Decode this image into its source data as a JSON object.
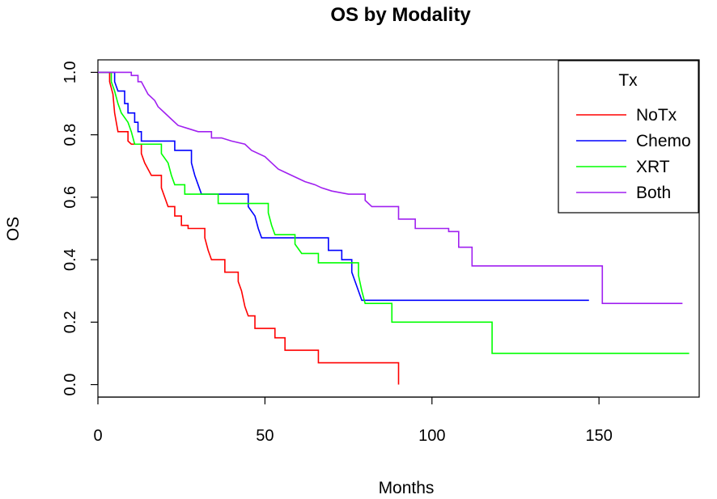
{
  "chart_data": {
    "type": "line",
    "subtype": "kaplan-meier step",
    "title": "OS by Modality",
    "xlabel": "Months",
    "ylabel": "OS",
    "xlim": [
      0,
      180
    ],
    "ylim": [
      -0.04,
      1.04
    ],
    "xticks": [
      0,
      50,
      100,
      150
    ],
    "yticks": [
      0.0,
      0.2,
      0.4,
      0.6,
      0.8,
      1.0
    ],
    "xtick_labels": [
      "0",
      "50",
      "100",
      "150"
    ],
    "ytick_labels": [
      "0.0",
      "0.2",
      "0.4",
      "0.6",
      "0.8",
      "1.0"
    ],
    "legend": {
      "title": "Tx",
      "position": "top-right"
    },
    "series": [
      {
        "name": "NoTx",
        "color": "#ff0000",
        "points": [
          [
            0,
            1.0
          ],
          [
            3.5,
            1.0
          ],
          [
            3.5,
            0.97
          ],
          [
            4.5,
            0.93
          ],
          [
            5,
            0.87
          ],
          [
            5.5,
            0.84
          ],
          [
            6,
            0.81
          ],
          [
            9,
            0.81
          ],
          [
            9,
            0.78
          ],
          [
            10,
            0.77
          ],
          [
            13,
            0.77
          ],
          [
            13,
            0.74
          ],
          [
            14,
            0.71
          ],
          [
            15,
            0.69
          ],
          [
            16,
            0.67
          ],
          [
            19,
            0.67
          ],
          [
            19,
            0.63
          ],
          [
            20,
            0.6
          ],
          [
            21,
            0.57
          ],
          [
            23,
            0.57
          ],
          [
            23,
            0.54
          ],
          [
            25,
            0.54
          ],
          [
            25,
            0.51
          ],
          [
            27,
            0.51
          ],
          [
            27,
            0.5
          ],
          [
            32,
            0.5
          ],
          [
            32,
            0.47
          ],
          [
            33,
            0.43
          ],
          [
            34,
            0.4
          ],
          [
            38,
            0.4
          ],
          [
            38,
            0.36
          ],
          [
            42,
            0.36
          ],
          [
            42,
            0.33
          ],
          [
            43,
            0.3
          ],
          [
            44,
            0.25
          ],
          [
            45,
            0.22
          ],
          [
            47,
            0.22
          ],
          [
            47,
            0.18
          ],
          [
            53,
            0.18
          ],
          [
            53,
            0.15
          ],
          [
            56,
            0.15
          ],
          [
            56,
            0.11
          ],
          [
            66,
            0.11
          ],
          [
            66,
            0.07
          ],
          [
            90,
            0.07
          ],
          [
            90,
            0.0
          ]
        ]
      },
      {
        "name": "Chemo",
        "color": "#0000ff",
        "points": [
          [
            0,
            1.0
          ],
          [
            5,
            1.0
          ],
          [
            5,
            0.97
          ],
          [
            6,
            0.94
          ],
          [
            8,
            0.94
          ],
          [
            8,
            0.9
          ],
          [
            9,
            0.9
          ],
          [
            9,
            0.87
          ],
          [
            11,
            0.87
          ],
          [
            11,
            0.84
          ],
          [
            12,
            0.84
          ],
          [
            12,
            0.81
          ],
          [
            13,
            0.81
          ],
          [
            13,
            0.78
          ],
          [
            23,
            0.78
          ],
          [
            23,
            0.75
          ],
          [
            28,
            0.75
          ],
          [
            28,
            0.71
          ],
          [
            29,
            0.67
          ],
          [
            30,
            0.64
          ],
          [
            31,
            0.61
          ],
          [
            45,
            0.61
          ],
          [
            45,
            0.57
          ],
          [
            47,
            0.54
          ],
          [
            48,
            0.5
          ],
          [
            49,
            0.47
          ],
          [
            69,
            0.47
          ],
          [
            69,
            0.43
          ],
          [
            73,
            0.43
          ],
          [
            73,
            0.4
          ],
          [
            76,
            0.4
          ],
          [
            76,
            0.36
          ],
          [
            77,
            0.33
          ],
          [
            78,
            0.3
          ],
          [
            79,
            0.27
          ],
          [
            147,
            0.27
          ]
        ]
      },
      {
        "name": "XRT",
        "color": "#00ff00",
        "points": [
          [
            0,
            1.0
          ],
          [
            4,
            1.0
          ],
          [
            4,
            0.97
          ],
          [
            5,
            0.94
          ],
          [
            6,
            0.9
          ],
          [
            7,
            0.87
          ],
          [
            9,
            0.84
          ],
          [
            10,
            0.81
          ],
          [
            11,
            0.77
          ],
          [
            19,
            0.77
          ],
          [
            19,
            0.74
          ],
          [
            21,
            0.71
          ],
          [
            22,
            0.67
          ],
          [
            23,
            0.64
          ],
          [
            26,
            0.64
          ],
          [
            26,
            0.61
          ],
          [
            36,
            0.61
          ],
          [
            36,
            0.58
          ],
          [
            51,
            0.58
          ],
          [
            51,
            0.55
          ],
          [
            52,
            0.51
          ],
          [
            53,
            0.48
          ],
          [
            59,
            0.48
          ],
          [
            59,
            0.45
          ],
          [
            61,
            0.42
          ],
          [
            66,
            0.42
          ],
          [
            66,
            0.39
          ],
          [
            78,
            0.39
          ],
          [
            78,
            0.35
          ],
          [
            79,
            0.3
          ],
          [
            80,
            0.26
          ],
          [
            88,
            0.26
          ],
          [
            88,
            0.2
          ],
          [
            118,
            0.2
          ],
          [
            118,
            0.1
          ],
          [
            177,
            0.1
          ]
        ]
      },
      {
        "name": "Both",
        "color": "#a020f0",
        "points": [
          [
            0,
            1.0
          ],
          [
            10,
            1.0
          ],
          [
            10,
            0.99
          ],
          [
            12,
            0.99
          ],
          [
            12,
            0.97
          ],
          [
            13,
            0.97
          ],
          [
            14,
            0.95
          ],
          [
            15,
            0.93
          ],
          [
            17,
            0.91
          ],
          [
            18,
            0.89
          ],
          [
            20,
            0.87
          ],
          [
            22,
            0.85
          ],
          [
            24,
            0.83
          ],
          [
            27,
            0.82
          ],
          [
            30,
            0.81
          ],
          [
            34,
            0.81
          ],
          [
            34,
            0.79
          ],
          [
            37,
            0.79
          ],
          [
            40,
            0.78
          ],
          [
            44,
            0.77
          ],
          [
            46,
            0.75
          ],
          [
            50,
            0.73
          ],
          [
            52,
            0.71
          ],
          [
            54,
            0.69
          ],
          [
            56,
            0.68
          ],
          [
            58,
            0.67
          ],
          [
            60,
            0.66
          ],
          [
            62,
            0.65
          ],
          [
            65,
            0.64
          ],
          [
            67,
            0.63
          ],
          [
            70,
            0.62
          ],
          [
            75,
            0.61
          ],
          [
            80,
            0.61
          ],
          [
            80,
            0.59
          ],
          [
            82,
            0.57
          ],
          [
            90,
            0.57
          ],
          [
            90,
            0.53
          ],
          [
            95,
            0.53
          ],
          [
            95,
            0.5
          ],
          [
            105,
            0.5
          ],
          [
            105,
            0.49
          ],
          [
            108,
            0.49
          ],
          [
            108,
            0.44
          ],
          [
            112,
            0.44
          ],
          [
            112,
            0.38
          ],
          [
            151,
            0.38
          ],
          [
            151,
            0.26
          ],
          [
            175,
            0.26
          ]
        ]
      }
    ]
  }
}
